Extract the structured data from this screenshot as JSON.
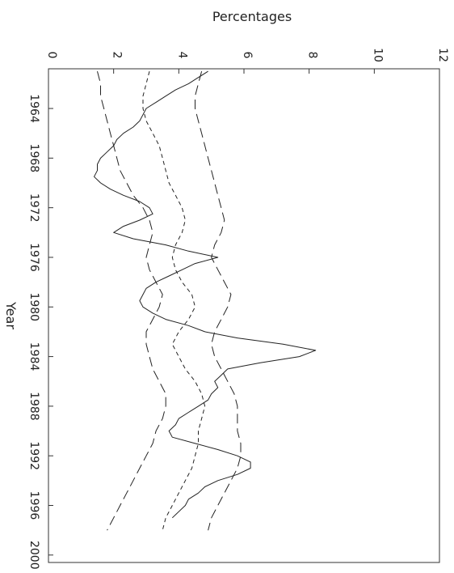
{
  "chart_data": {
    "type": "line",
    "orientation": "rotated",
    "xlabel": "Year",
    "ylabel": "Percentages",
    "xlim": [
      1960.8,
      2000.6
    ],
    "ylim": [
      0,
      12
    ],
    "x_ticks": [
      1964,
      1968,
      1972,
      1976,
      1980,
      1984,
      1988,
      1992,
      1996,
      2000
    ],
    "y_ticks": [
      0,
      2,
      4,
      6,
      8,
      10,
      12
    ],
    "grid": false,
    "series": [
      {
        "style": "solid",
        "x": [
          1961.0,
          1961.5,
          1962.0,
          1962.5,
          1963.0,
          1963.5,
          1964.0,
          1964.5,
          1965.0,
          1965.5,
          1966.0,
          1966.5,
          1967.0,
          1967.5,
          1968.0,
          1968.5,
          1969.0,
          1969.5,
          1970.0,
          1970.5,
          1971.0,
          1971.5,
          1972.0,
          1972.5,
          1973.0,
          1973.5,
          1974.0,
          1974.5,
          1975.0,
          1975.5,
          1976.0,
          1976.5,
          1977.0,
          1977.5,
          1978.0,
          1978.5,
          1979.0,
          1979.5,
          1980.0,
          1980.5,
          1981.0,
          1981.5,
          1982.0,
          1982.5,
          1983.0,
          1983.5,
          1984.0,
          1984.5,
          1985.0,
          1985.5,
          1986.0,
          1986.5,
          1987.0,
          1987.5,
          1988.0,
          1988.5,
          1989.0,
          1989.5,
          1990.0,
          1990.5,
          1991.0,
          1991.5,
          1992.0,
          1992.5,
          1993.0,
          1993.5,
          1994.0,
          1994.5,
          1995.0,
          1995.5,
          1996.0,
          1996.5,
          1997.0
        ],
        "y": [
          4.9,
          4.6,
          4.3,
          3.9,
          3.6,
          3.3,
          3.0,
          2.9,
          2.8,
          2.6,
          2.3,
          2.1,
          2.0,
          1.8,
          1.6,
          1.5,
          1.5,
          1.4,
          1.6,
          1.9,
          2.3,
          2.8,
          3.1,
          3.2,
          2.8,
          2.3,
          2.0,
          2.6,
          3.6,
          4.3,
          5.2,
          4.5,
          4.1,
          3.7,
          3.3,
          3.0,
          2.9,
          2.8,
          2.9,
          3.2,
          3.6,
          4.3,
          4.8,
          5.8,
          7.2,
          8.2,
          7.7,
          6.5,
          5.5,
          5.3,
          5.1,
          5.2,
          5.0,
          4.9,
          4.6,
          4.3,
          4.0,
          3.9,
          3.7,
          3.8,
          4.5,
          5.2,
          5.8,
          6.2,
          6.2,
          5.8,
          5.2,
          4.8,
          4.6,
          4.3,
          4.2,
          4.0,
          3.8
        ]
      },
      {
        "style": "short-dash",
        "x": [
          1961.0,
          1962.0,
          1963.0,
          1964.0,
          1965.0,
          1966.0,
          1967.0,
          1968.0,
          1969.0,
          1970.0,
          1971.0,
          1972.0,
          1973.0,
          1974.0,
          1975.0,
          1976.0,
          1977.0,
          1978.0,
          1979.0,
          1980.0,
          1981.0,
          1982.0,
          1983.0,
          1984.0,
          1985.0,
          1986.0,
          1987.0,
          1988.0,
          1989.0,
          1990.0,
          1991.0,
          1992.0,
          1993.0,
          1994.0,
          1995.0,
          1996.0,
          1997.0,
          1998.0
        ],
        "y": [
          3.1,
          3.0,
          2.9,
          2.9,
          3.0,
          3.2,
          3.4,
          3.5,
          3.6,
          3.7,
          3.9,
          4.1,
          4.2,
          4.1,
          3.9,
          3.8,
          3.9,
          4.1,
          4.4,
          4.5,
          4.3,
          4.0,
          3.8,
          4.0,
          4.2,
          4.5,
          4.7,
          4.8,
          4.7,
          4.6,
          4.6,
          4.5,
          4.4,
          4.2,
          4.0,
          3.8,
          3.6,
          3.5
        ]
      },
      {
        "style": "long-dash",
        "x": [
          1961.0,
          1962.0,
          1963.0,
          1964.0,
          1965.0,
          1966.0,
          1967.0,
          1968.0,
          1969.0,
          1970.0,
          1971.0,
          1972.0,
          1973.0,
          1974.0,
          1975.0,
          1976.0,
          1977.0,
          1978.0,
          1979.0,
          1980.0,
          1981.0,
          1982.0,
          1983.0,
          1984.0,
          1985.0,
          1986.0,
          1987.0,
          1988.0,
          1989.0,
          1990.0,
          1991.0,
          1992.0,
          1993.0,
          1994.0,
          1995.0,
          1996.0,
          1997.0,
          1998.0
        ],
        "y": [
          1.5,
          1.6,
          1.6,
          1.7,
          1.8,
          1.9,
          2.0,
          2.1,
          2.2,
          2.4,
          2.6,
          2.9,
          3.1,
          3.2,
          3.1,
          3.0,
          3.1,
          3.3,
          3.5,
          3.4,
          3.2,
          3.0,
          3.0,
          3.1,
          3.2,
          3.4,
          3.6,
          3.6,
          3.5,
          3.3,
          3.2,
          3.0,
          2.8,
          2.6,
          2.4,
          2.2,
          2.0,
          1.8
        ]
      },
      {
        "style": "long-dash",
        "x": [
          1961.0,
          1962.0,
          1963.0,
          1964.0,
          1965.0,
          1966.0,
          1967.0,
          1968.0,
          1969.0,
          1970.0,
          1971.0,
          1972.0,
          1973.0,
          1974.0,
          1975.0,
          1976.0,
          1977.0,
          1978.0,
          1979.0,
          1980.0,
          1981.0,
          1982.0,
          1983.0,
          1984.0,
          1985.0,
          1986.0,
          1987.0,
          1988.0,
          1989.0,
          1990.0,
          1991.0,
          1992.0,
          1993.0,
          1994.0,
          1995.0,
          1996.0,
          1997.0,
          1998.0
        ],
        "y": [
          4.7,
          4.6,
          4.5,
          4.5,
          4.6,
          4.7,
          4.8,
          4.9,
          5.0,
          5.1,
          5.2,
          5.3,
          5.4,
          5.3,
          5.1,
          5.0,
          5.2,
          5.4,
          5.6,
          5.5,
          5.3,
          5.1,
          5.0,
          5.1,
          5.3,
          5.5,
          5.7,
          5.8,
          5.8,
          5.8,
          5.9,
          5.9,
          5.8,
          5.6,
          5.4,
          5.2,
          5.0,
          4.9
        ]
      }
    ]
  }
}
